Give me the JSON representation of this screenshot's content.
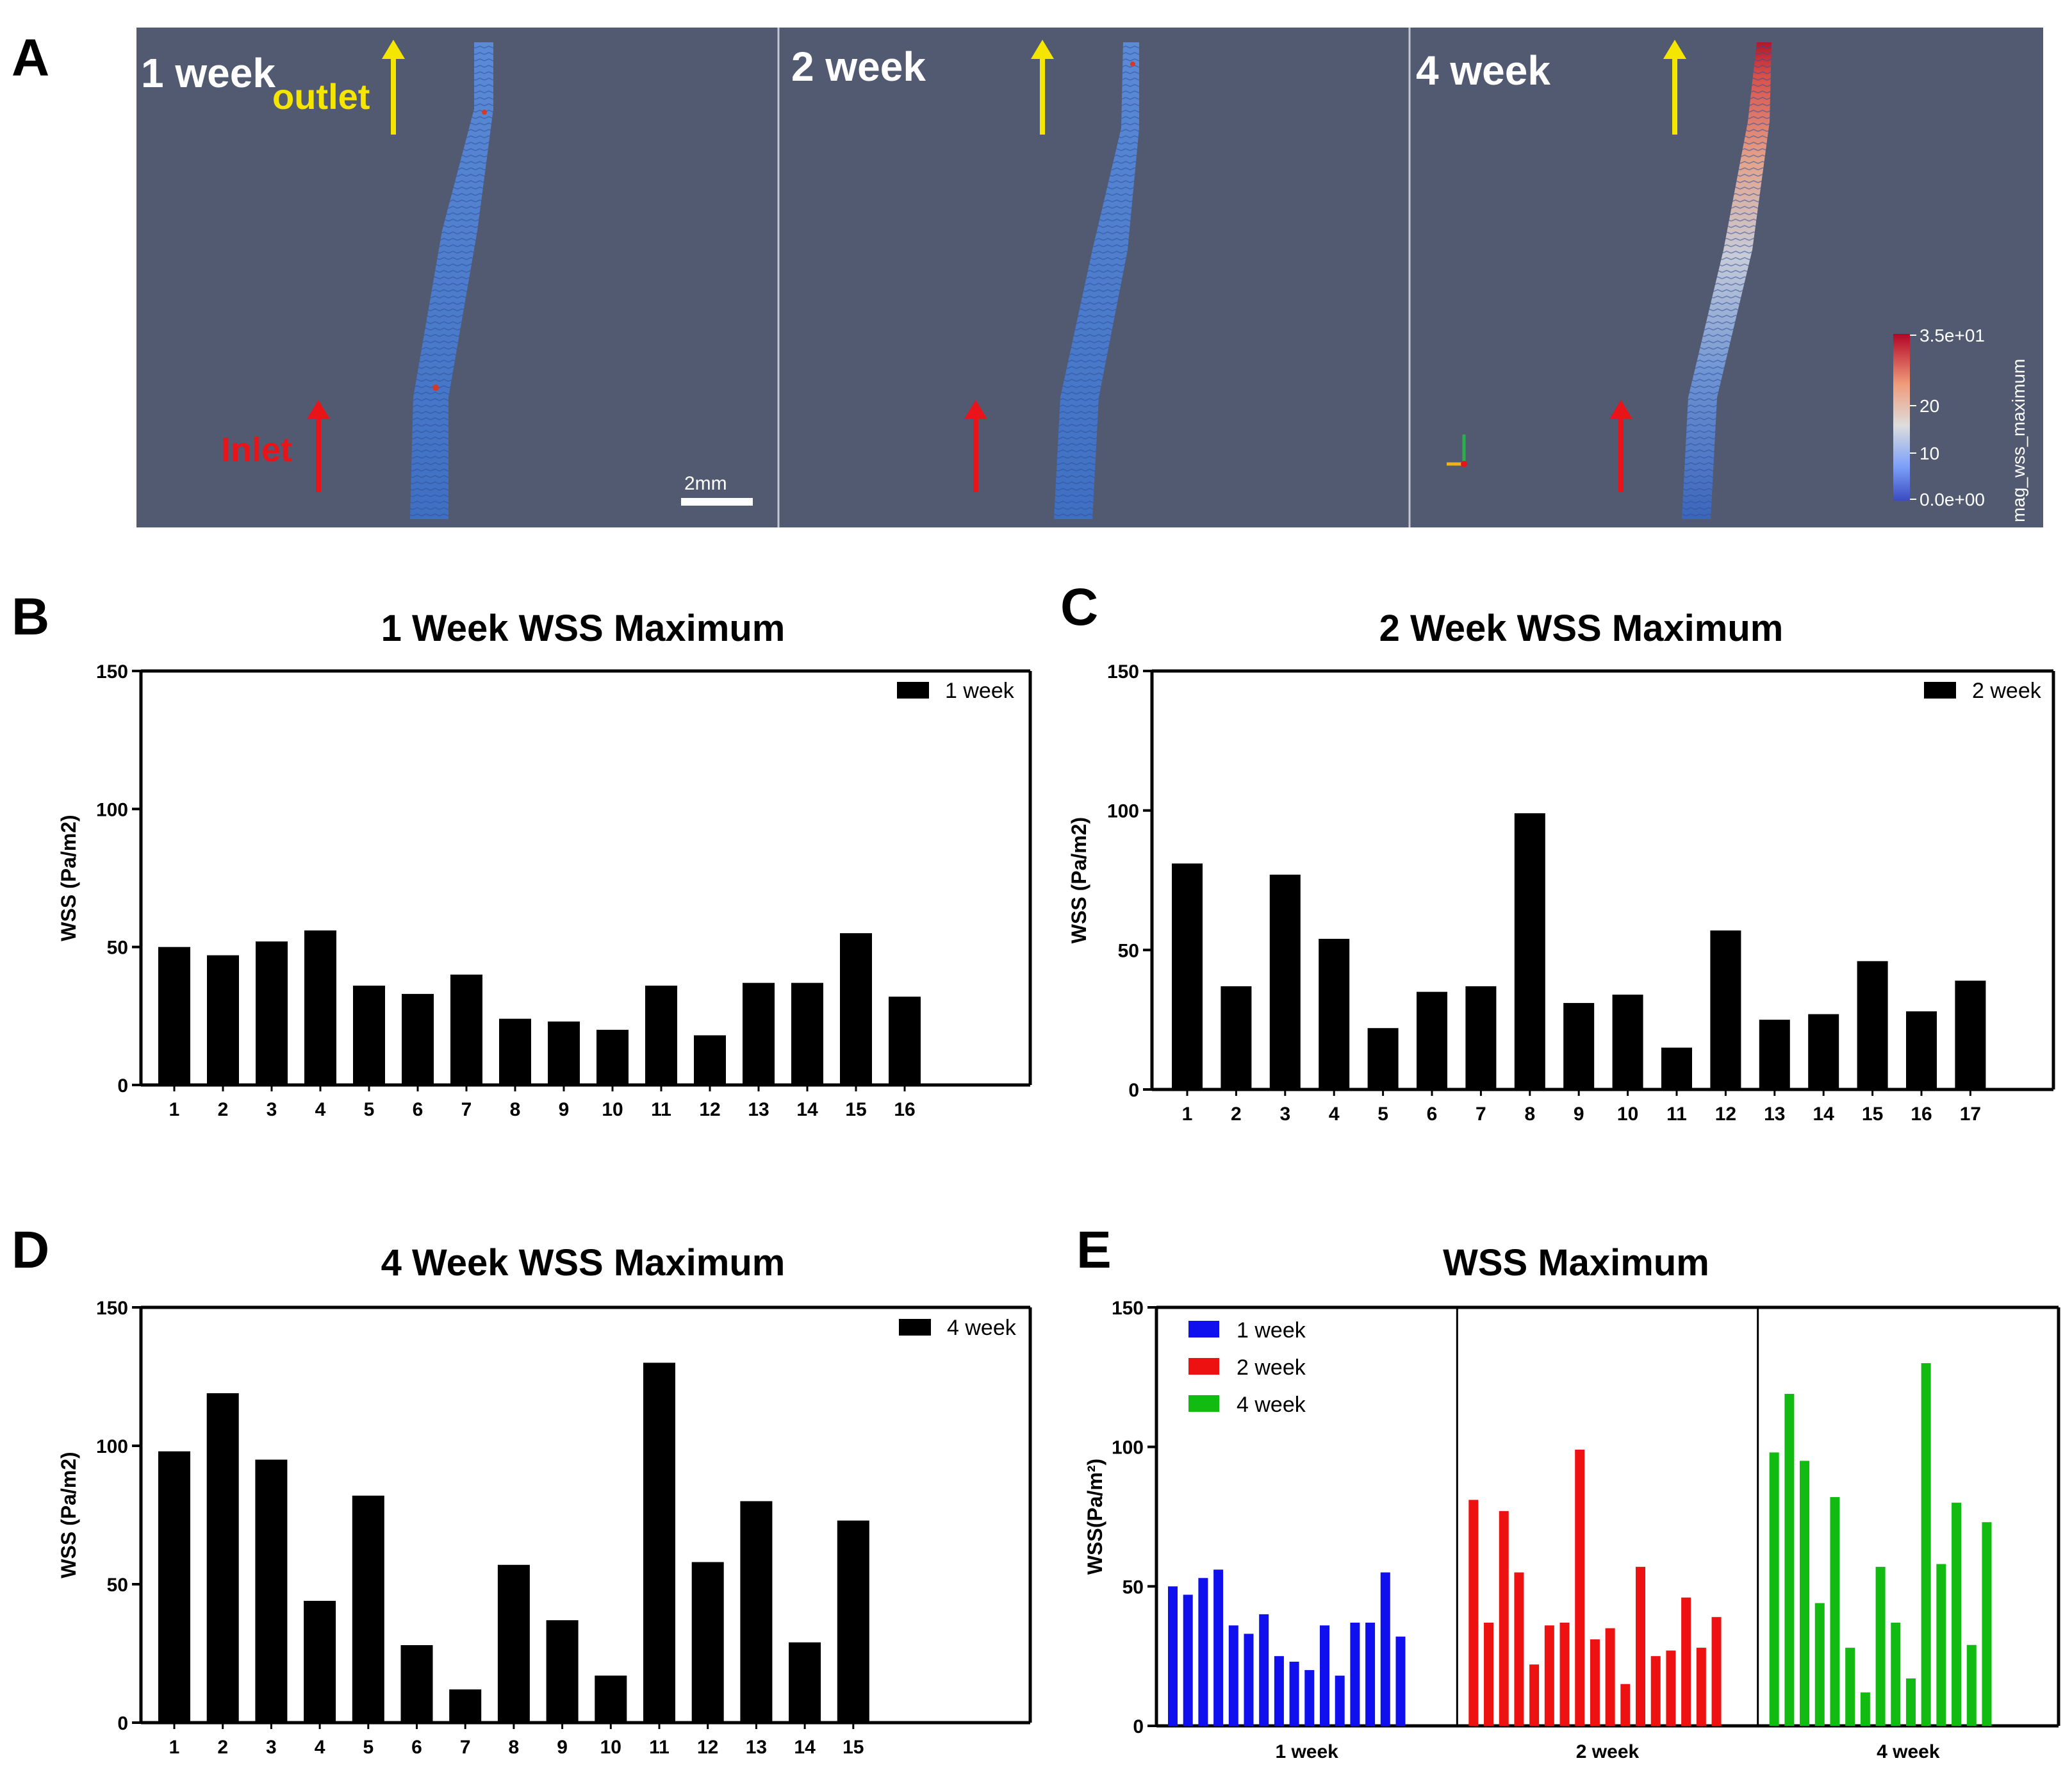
{
  "figure": {
    "panels": {
      "A": {
        "letter": "A",
        "views": [
          {
            "label": "1 week"
          },
          {
            "label": "2 week"
          },
          {
            "label": "4 week"
          }
        ],
        "outlet_label": "outlet",
        "inlet_label": "Inlet",
        "scalebar_label": "2mm",
        "colorbar": {
          "title": "mag_wss_maximum",
          "ticks": [
            "3.5e+01",
            "20",
            "10",
            "0.0e+00"
          ]
        },
        "colors": {
          "background": "#525a72",
          "outlet_arrow": "#f5e600",
          "inlet_arrow": "#e8141a",
          "vessel_low": "#4a7fd0",
          "vessel_high": "#d23a2a"
        }
      },
      "B": {
        "letter": "B"
      },
      "C": {
        "letter": "C"
      },
      "D": {
        "letter": "D"
      },
      "E": {
        "letter": "E"
      }
    }
  },
  "chart_data": [
    {
      "panel": "B",
      "type": "bar",
      "title": "1 Week WSS Maximum",
      "ylabel": "WSS (Pa/m2)",
      "xlabel": "",
      "ylim": [
        0,
        150
      ],
      "yticks": [
        0,
        50,
        100,
        150
      ],
      "categories": [
        "1",
        "2",
        "3",
        "4",
        "5",
        "6",
        "7",
        "8",
        "9",
        "10",
        "11",
        "12",
        "13",
        "14",
        "15",
        "16"
      ],
      "series": [
        {
          "name": "1 week",
          "color": "#000000",
          "values": [
            50,
            47,
            52,
            56,
            36,
            33,
            40,
            24,
            23,
            20,
            36,
            18,
            37,
            37,
            55,
            32
          ]
        }
      ],
      "legend": "top-right"
    },
    {
      "panel": "C",
      "type": "bar",
      "title": "2 Week WSS Maximum",
      "ylabel": "WSS (Pa/m2)",
      "xlabel": "",
      "ylim": [
        0,
        150
      ],
      "yticks": [
        0,
        50,
        100,
        150
      ],
      "categories": [
        "1",
        "2",
        "3",
        "4",
        "5",
        "6",
        "7",
        "8",
        "9",
        "10",
        "11",
        "12",
        "13",
        "14",
        "15",
        "16",
        "17"
      ],
      "series": [
        {
          "name": "2 week",
          "color": "#000000",
          "values": [
            81,
            37,
            77,
            54,
            22,
            35,
            37,
            99,
            31,
            34,
            15,
            57,
            25,
            27,
            46,
            28,
            39
          ]
        }
      ],
      "legend": "top-right"
    },
    {
      "panel": "D",
      "type": "bar",
      "title": "4 Week WSS Maximum",
      "ylabel": "WSS (Pa/m2)",
      "xlabel": "",
      "ylim": [
        0,
        150
      ],
      "yticks": [
        0,
        50,
        100,
        150
      ],
      "categories": [
        "1",
        "2",
        "3",
        "4",
        "5",
        "6",
        "7",
        "8",
        "9",
        "10",
        "11",
        "12",
        "13",
        "14",
        "15"
      ],
      "series": [
        {
          "name": "4 week",
          "color": "#000000",
          "values": [
            98,
            119,
            95,
            44,
            82,
            28,
            12,
            57,
            37,
            17,
            130,
            58,
            80,
            29,
            73
          ]
        }
      ],
      "legend": "top-right"
    },
    {
      "panel": "E",
      "type": "bar",
      "title": "WSS Maximum",
      "ylabel": "WSS(Pa/m²)",
      "xlabel": "",
      "ylim": [
        0,
        150
      ],
      "yticks": [
        0,
        50,
        100,
        150
      ],
      "groups": [
        "1 week",
        "2 week",
        "4 week"
      ],
      "series": [
        {
          "name": "1 week",
          "color": "#1010ee",
          "values": [
            50,
            47,
            53,
            56,
            36,
            33,
            40,
            25,
            23,
            20,
            36,
            18,
            37,
            37,
            55,
            32
          ]
        },
        {
          "name": "2 week",
          "color": "#ee1111",
          "values": [
            81,
            37,
            77,
            55,
            22,
            36,
            37,
            99,
            31,
            35,
            15,
            57,
            25,
            27,
            46,
            28,
            39
          ]
        },
        {
          "name": "4 week",
          "color": "#11bb11",
          "values": [
            98,
            119,
            95,
            44,
            82,
            28,
            12,
            57,
            37,
            17,
            130,
            58,
            80,
            29,
            73
          ]
        }
      ],
      "legend": "top-left"
    }
  ]
}
